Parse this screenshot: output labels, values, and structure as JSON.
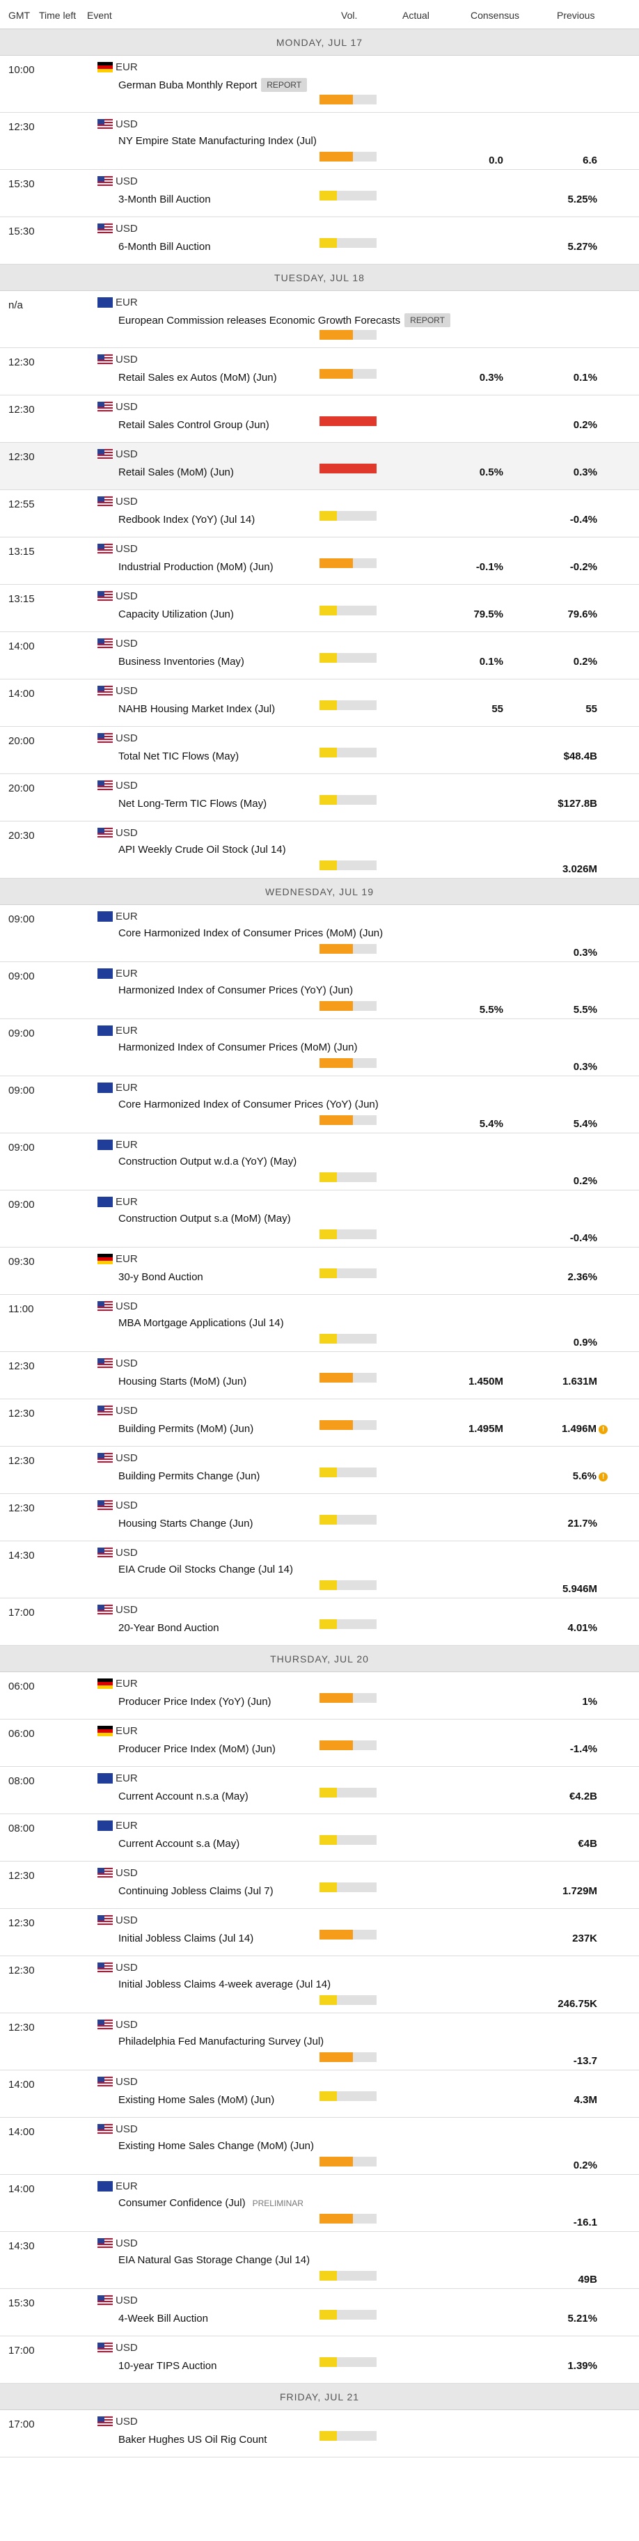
{
  "header": {
    "gmt": "GMT",
    "time_left": "Time left",
    "event": "Event",
    "vol": "Vol.",
    "actual": "Actual",
    "consensus": "Consensus",
    "previous": "Previous"
  },
  "colors": {
    "vol_high": "#e0392b",
    "vol_medium": "#f59c1a",
    "vol_low": "#f5d319",
    "vol_empty": "#e0e0e0"
  },
  "days": [
    {
      "label": "MONDAY, JUL 17",
      "events": [
        {
          "time": "10:00",
          "currency": "EUR",
          "flag": "ger",
          "name": "German Buba Monthly Report",
          "badge": "REPORT",
          "vol": "medium",
          "consensus": "",
          "previous": "",
          "tall": true
        },
        {
          "time": "12:30",
          "currency": "USD",
          "flag": "usa",
          "name": "NY Empire State Manufacturing Index (Jul)",
          "vol": "medium",
          "consensus": "0.0",
          "previous": "6.6",
          "tall": true,
          "vals_low": true
        },
        {
          "time": "15:30",
          "currency": "USD",
          "flag": "usa",
          "name": "3-Month Bill Auction",
          "vol": "low",
          "consensus": "",
          "previous": "5.25%"
        },
        {
          "time": "15:30",
          "currency": "USD",
          "flag": "usa",
          "name": "6-Month Bill Auction",
          "vol": "low",
          "consensus": "",
          "previous": "5.27%"
        }
      ]
    },
    {
      "label": "TUESDAY, JUL 18",
      "events": [
        {
          "time": "n/a",
          "currency": "EUR",
          "flag": "eur",
          "name": "European Commission releases Economic Growth Forecasts",
          "badge": "REPORT",
          "vol": "medium",
          "consensus": "",
          "previous": "",
          "tall": true
        },
        {
          "time": "12:30",
          "currency": "USD",
          "flag": "usa",
          "name": "Retail Sales ex Autos (MoM) (Jun)",
          "vol": "medium",
          "consensus": "0.3%",
          "previous": "0.1%"
        },
        {
          "time": "12:30",
          "currency": "USD",
          "flag": "usa",
          "name": "Retail Sales Control Group (Jun)",
          "vol": "high",
          "consensus": "",
          "previous": "0.2%"
        },
        {
          "time": "12:30",
          "currency": "USD",
          "flag": "usa",
          "name": "Retail Sales (MoM) (Jun)",
          "vol": "high",
          "consensus": "0.5%",
          "previous": "0.3%",
          "alt": true
        },
        {
          "time": "12:55",
          "currency": "USD",
          "flag": "usa",
          "name": "Redbook Index (YoY) (Jul 14)",
          "vol": "low",
          "consensus": "",
          "previous": "-0.4%"
        },
        {
          "time": "13:15",
          "currency": "USD",
          "flag": "usa",
          "name": "Industrial Production (MoM) (Jun)",
          "vol": "medium",
          "consensus": "-0.1%",
          "previous": "-0.2%"
        },
        {
          "time": "13:15",
          "currency": "USD",
          "flag": "usa",
          "name": "Capacity Utilization (Jun)",
          "vol": "low",
          "consensus": "79.5%",
          "previous": "79.6%"
        },
        {
          "time": "14:00",
          "currency": "USD",
          "flag": "usa",
          "name": "Business Inventories (May)",
          "vol": "low",
          "consensus": "0.1%",
          "previous": "0.2%"
        },
        {
          "time": "14:00",
          "currency": "USD",
          "flag": "usa",
          "name": "NAHB Housing Market Index (Jul)",
          "vol": "low",
          "consensus": "55",
          "previous": "55"
        },
        {
          "time": "20:00",
          "currency": "USD",
          "flag": "usa",
          "name": "Total Net TIC Flows (May)",
          "vol": "low",
          "consensus": "",
          "previous": "$48.4B"
        },
        {
          "time": "20:00",
          "currency": "USD",
          "flag": "usa",
          "name": "Net Long-Term TIC Flows (May)",
          "vol": "low",
          "consensus": "",
          "previous": "$127.8B"
        },
        {
          "time": "20:30",
          "currency": "USD",
          "flag": "usa",
          "name": "API Weekly Crude Oil Stock (Jul 14)",
          "vol": "low",
          "consensus": "",
          "previous": "3.026M",
          "tall": true
        }
      ]
    },
    {
      "label": "WEDNESDAY, JUL 19",
      "events": [
        {
          "time": "09:00",
          "currency": "EUR",
          "flag": "eur",
          "name": "Core Harmonized Index of Consumer Prices (MoM) (Jun)",
          "vol": "medium",
          "consensus": "",
          "previous": "0.3%",
          "tall": true
        },
        {
          "time": "09:00",
          "currency": "EUR",
          "flag": "eur",
          "name": "Harmonized Index of Consumer Prices (YoY) (Jun)",
          "vol": "medium",
          "consensus": "5.5%",
          "previous": "5.5%",
          "tall": true
        },
        {
          "time": "09:00",
          "currency": "EUR",
          "flag": "eur",
          "name": "Harmonized Index of Consumer Prices (MoM) (Jun)",
          "vol": "medium",
          "consensus": "",
          "previous": "0.3%",
          "tall": true
        },
        {
          "time": "09:00",
          "currency": "EUR",
          "flag": "eur",
          "name": "Core Harmonized Index of Consumer Prices (YoY) (Jun)",
          "vol": "medium",
          "consensus": "5.4%",
          "previous": "5.4%",
          "tall": true
        },
        {
          "time": "09:00",
          "currency": "EUR",
          "flag": "eur",
          "name": "Construction Output w.d.a (YoY) (May)",
          "vol": "low",
          "consensus": "",
          "previous": "0.2%",
          "tall": true
        },
        {
          "time": "09:00",
          "currency": "EUR",
          "flag": "eur",
          "name": "Construction Output s.a (MoM) (May)",
          "vol": "low",
          "consensus": "",
          "previous": "-0.4%",
          "tall": true
        },
        {
          "time": "09:30",
          "currency": "EUR",
          "flag": "ger",
          "name": "30-y Bond Auction",
          "vol": "low",
          "consensus": "",
          "previous": "2.36%"
        },
        {
          "time": "11:00",
          "currency": "USD",
          "flag": "usa",
          "name": "MBA Mortgage Applications (Jul 14)",
          "vol": "low",
          "consensus": "",
          "previous": "0.9%",
          "tall": true
        },
        {
          "time": "12:30",
          "currency": "USD",
          "flag": "usa",
          "name": "Housing Starts (MoM) (Jun)",
          "vol": "medium",
          "consensus": "1.450M",
          "previous": "1.631M"
        },
        {
          "time": "12:30",
          "currency": "USD",
          "flag": "usa",
          "name": "Building Permits (MoM) (Jun)",
          "vol": "medium",
          "consensus": "1.495M",
          "previous": "1.496M",
          "warn": true
        },
        {
          "time": "12:30",
          "currency": "USD",
          "flag": "usa",
          "name": "Building Permits Change (Jun)",
          "vol": "low",
          "consensus": "",
          "previous": "5.6%",
          "warn": true
        },
        {
          "time": "12:30",
          "currency": "USD",
          "flag": "usa",
          "name": "Housing Starts Change (Jun)",
          "vol": "low",
          "consensus": "",
          "previous": "21.7%"
        },
        {
          "time": "14:30",
          "currency": "USD",
          "flag": "usa",
          "name": "EIA Crude Oil Stocks Change (Jul 14)",
          "vol": "low",
          "consensus": "",
          "previous": "5.946M",
          "tall": true
        },
        {
          "time": "17:00",
          "currency": "USD",
          "flag": "usa",
          "name": "20-Year Bond Auction",
          "vol": "low",
          "consensus": "",
          "previous": "4.01%"
        }
      ]
    },
    {
      "label": "THURSDAY, JUL 20",
      "events": [
        {
          "time": "06:00",
          "currency": "EUR",
          "flag": "ger",
          "name": "Producer Price Index (YoY) (Jun)",
          "vol": "medium",
          "consensus": "",
          "previous": "1%"
        },
        {
          "time": "06:00",
          "currency": "EUR",
          "flag": "ger",
          "name": "Producer Price Index (MoM) (Jun)",
          "vol": "medium",
          "consensus": "",
          "previous": "-1.4%"
        },
        {
          "time": "08:00",
          "currency": "EUR",
          "flag": "eur",
          "name": "Current Account n.s.a (May)",
          "vol": "low",
          "consensus": "",
          "previous": "€4.2B"
        },
        {
          "time": "08:00",
          "currency": "EUR",
          "flag": "eur",
          "name": "Current Account s.a (May)",
          "vol": "low",
          "consensus": "",
          "previous": "€4B"
        },
        {
          "time": "12:30",
          "currency": "USD",
          "flag": "usa",
          "name": "Continuing Jobless Claims (Jul 7)",
          "vol": "low",
          "consensus": "",
          "previous": "1.729M"
        },
        {
          "time": "12:30",
          "currency": "USD",
          "flag": "usa",
          "name": "Initial Jobless Claims (Jul 14)",
          "vol": "medium",
          "consensus": "",
          "previous": "237K"
        },
        {
          "time": "12:30",
          "currency": "USD",
          "flag": "usa",
          "name": "Initial Jobless Claims 4-week average (Jul 14)",
          "vol": "low",
          "consensus": "",
          "previous": "246.75K",
          "tall": true
        },
        {
          "time": "12:30",
          "currency": "USD",
          "flag": "usa",
          "name": "Philadelphia Fed Manufacturing Survey (Jul)",
          "vol": "medium",
          "consensus": "",
          "previous": "-13.7",
          "tall": true
        },
        {
          "time": "14:00",
          "currency": "USD",
          "flag": "usa",
          "name": "Existing Home Sales (MoM) (Jun)",
          "vol": "low",
          "consensus": "",
          "previous": "4.3M"
        },
        {
          "time": "14:00",
          "currency": "USD",
          "flag": "usa",
          "name": "Existing Home Sales Change (MoM) (Jun)",
          "vol": "medium",
          "consensus": "",
          "previous": "0.2%",
          "tall": true
        },
        {
          "time": "14:00",
          "currency": "EUR",
          "flag": "eur",
          "name": "Consumer Confidence (Jul)",
          "note": "PRELIMINAR",
          "vol": "medium",
          "consensus": "",
          "previous": "-16.1",
          "tall": true
        },
        {
          "time": "14:30",
          "currency": "USD",
          "flag": "usa",
          "name": "EIA Natural Gas Storage Change (Jul 14)",
          "vol": "low",
          "consensus": "",
          "previous": "49B",
          "tall": true
        },
        {
          "time": "15:30",
          "currency": "USD",
          "flag": "usa",
          "name": "4-Week Bill Auction",
          "vol": "low",
          "consensus": "",
          "previous": "5.21%"
        },
        {
          "time": "17:00",
          "currency": "USD",
          "flag": "usa",
          "name": "10-year TIPS Auction",
          "vol": "low",
          "consensus": "",
          "previous": "1.39%"
        }
      ]
    },
    {
      "label": "FRIDAY, JUL 21",
      "events": [
        {
          "time": "17:00",
          "currency": "USD",
          "flag": "usa",
          "name": "Baker Hughes US Oil Rig Count",
          "vol": "low",
          "consensus": "",
          "previous": ""
        }
      ]
    }
  ]
}
